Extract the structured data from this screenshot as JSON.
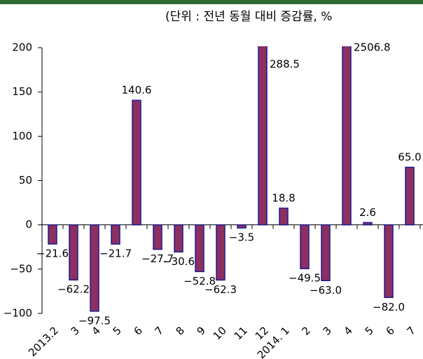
{
  "chart_data": {
    "type": "bar",
    "subtitle": "(단위 : 전년 동월 대비 증감률, %",
    "categories": [
      "2013.2",
      "3",
      "4",
      "5",
      "6",
      "7",
      "8",
      "9",
      "10",
      "11",
      "12",
      "2014. 1",
      "2",
      "3",
      "4",
      "5",
      "6",
      "7"
    ],
    "values": [
      -21.6,
      -62.2,
      -97.5,
      -21.7,
      140.6,
      -27.7,
      -30.6,
      -52.8,
      -62.3,
      -3.5,
      288.5,
      18.8,
      -49.5,
      -63.0,
      2506.8,
      2.6,
      -82.0,
      65.0
    ],
    "value_labels": [
      "−21.6",
      "−62.2",
      "−97.5",
      "−21.7",
      "140.6",
      "−27.7",
      "−30.6",
      "−52.8",
      "−62.3",
      "−3.5",
      "288.5",
      "18.8",
      "−49.5",
      "−63.0",
      "2506.8",
      "2.6",
      "−82.0",
      "65.0"
    ],
    "color": "#8e2f62",
    "edge_color": "#1c1c8c",
    "ylim": [
      -100,
      200
    ],
    "yticks": [
      {
        "value": -100,
        "label": "−100"
      },
      {
        "value": -50,
        "label": "−50"
      },
      0,
      50,
      100,
      150,
      200
    ],
    "grid": false
  }
}
